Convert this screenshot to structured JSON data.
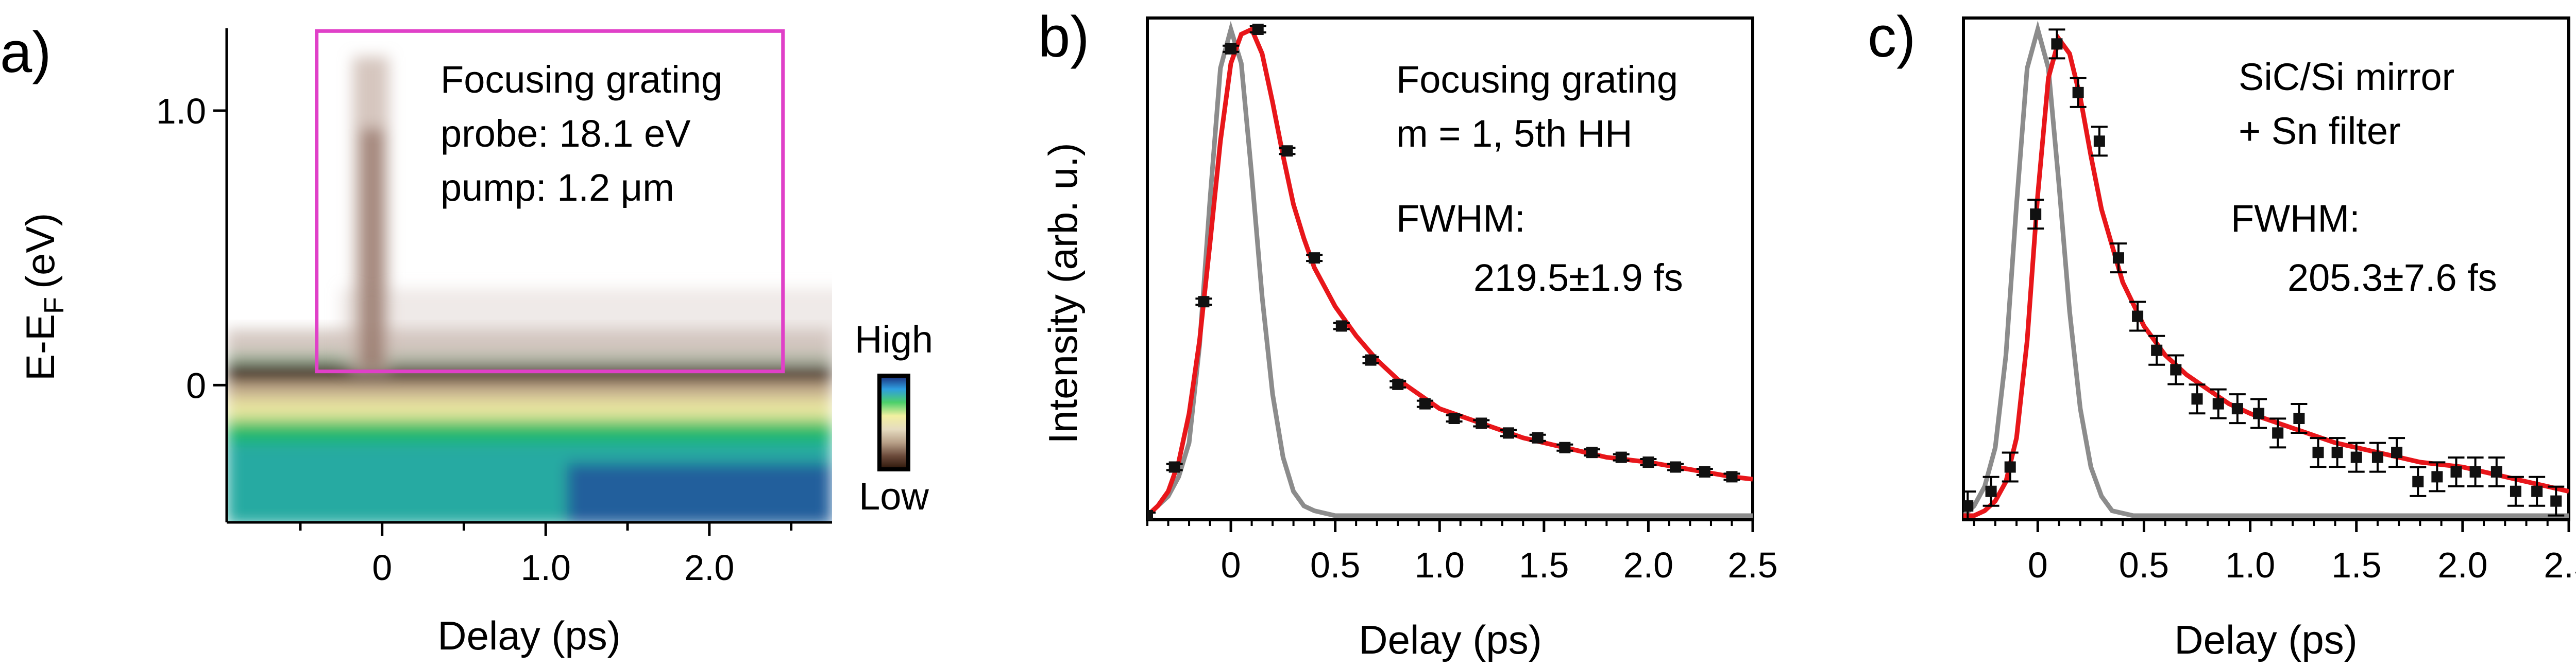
{
  "chart_data": [
    {
      "panel_label": "a)",
      "type": "heatmap",
      "xlabel": "Delay (ps)",
      "ylabel_main": "E-E",
      "ylabel_sub": "F",
      "ylabel_unit": "(eV)",
      "xlim": [
        -0.95,
        2.75
      ],
      "ylim": [
        -0.5,
        1.3
      ],
      "xticks": [
        {
          "value": 0,
          "label": "0"
        },
        {
          "value": 1.0,
          "label": "1.0"
        },
        {
          "value": 2.0,
          "label": "2.0"
        }
      ],
      "xticks_minor": [
        -0.5,
        0.5,
        1.5,
        2.5
      ],
      "yticks": [
        {
          "value": 0,
          "label": "0"
        },
        {
          "value": 1.0,
          "label": "1.0"
        }
      ],
      "annotation": [
        "Focusing grating",
        "probe: 18.1 eV",
        "pump: 1.2 μm"
      ],
      "box": {
        "x0": -0.4,
        "x1": 2.45,
        "y0": 0.05,
        "y1": 1.29,
        "color": "#e040c8"
      },
      "colorbar": {
        "high": "High",
        "low": "Low",
        "colors": [
          "#2a1408",
          "#6b4a3a",
          "#b8a088",
          "#e6dcc0",
          "#f2f0a0",
          "#4cd06a",
          "#2e9ee0",
          "#1a2a78"
        ]
      }
    },
    {
      "panel_label": "b)",
      "type": "scatter",
      "xlabel": "Delay (ps)",
      "ylabel": "Intensity (arb. u.)",
      "xlim": [
        -0.4,
        2.5
      ],
      "ylim": [
        0,
        1
      ],
      "xticks": [
        {
          "value": 0,
          "label": "0"
        },
        {
          "value": 0.5,
          "label": "0.5"
        },
        {
          "value": 1.0,
          "label": "1.0"
        },
        {
          "value": 1.5,
          "label": "1.5"
        },
        {
          "value": 2.0,
          "label": "2.0"
        },
        {
          "value": 2.5,
          "label": "2.5"
        }
      ],
      "annotation": [
        "Focusing grating",
        "m = 1, 5th HH"
      ],
      "fwhm_label": "FWHM:",
      "fwhm_value": "219.5±1.9 fs",
      "series": [
        {
          "name": "data",
          "x": [
            -0.4,
            -0.27,
            -0.13,
            0.0,
            0.13,
            0.27,
            0.4,
            0.53,
            0.67,
            0.8,
            0.93,
            1.07,
            1.2,
            1.33,
            1.47,
            1.6,
            1.73,
            1.87,
            2.0,
            2.13,
            2.27,
            2.4
          ],
          "y": [
            0.0,
            0.1,
            0.44,
            0.96,
            1.0,
            0.75,
            0.53,
            0.39,
            0.32,
            0.27,
            0.23,
            0.2,
            0.19,
            0.17,
            0.16,
            0.14,
            0.13,
            0.12,
            0.11,
            0.1,
            0.09,
            0.08
          ]
        },
        {
          "name": "fit",
          "color": "#e8161a",
          "x": [
            -0.4,
            -0.35,
            -0.3,
            -0.25,
            -0.2,
            -0.15,
            -0.1,
            -0.05,
            0.0,
            0.05,
            0.1,
            0.15,
            0.2,
            0.25,
            0.3,
            0.35,
            0.4,
            0.5,
            0.6,
            0.7,
            0.8,
            0.9,
            1.0,
            1.2,
            1.4,
            1.6,
            1.8,
            2.0,
            2.2,
            2.4,
            2.5
          ],
          "y": [
            0.0,
            0.02,
            0.05,
            0.11,
            0.21,
            0.36,
            0.56,
            0.77,
            0.93,
            0.99,
            1.0,
            0.95,
            0.85,
            0.74,
            0.64,
            0.57,
            0.51,
            0.43,
            0.37,
            0.32,
            0.28,
            0.25,
            0.22,
            0.19,
            0.16,
            0.14,
            0.12,
            0.11,
            0.095,
            0.08,
            0.075
          ]
        },
        {
          "name": "cross-correlation",
          "color": "#8c8c8c",
          "x": [
            -0.4,
            -0.3,
            -0.25,
            -0.2,
            -0.15,
            -0.1,
            -0.05,
            0.0,
            0.05,
            0.1,
            0.15,
            0.2,
            0.25,
            0.3,
            0.35,
            0.4,
            0.5,
            0.7,
            1.0,
            2.5
          ],
          "y": [
            0.0,
            0.04,
            0.08,
            0.15,
            0.35,
            0.65,
            0.92,
            1.0,
            0.93,
            0.7,
            0.45,
            0.25,
            0.12,
            0.05,
            0.02,
            0.01,
            0.0,
            0.0,
            0.0,
            0.0
          ]
        }
      ]
    },
    {
      "panel_label": "c)",
      "type": "scatter",
      "xlabel": "Delay (ps)",
      "ylabel": "",
      "xlim": [
        -0.35,
        2.5
      ],
      "ylim": [
        0,
        1
      ],
      "xticks": [
        {
          "value": 0,
          "label": "0"
        },
        {
          "value": 0.5,
          "label": "0.5"
        },
        {
          "value": 1.0,
          "label": "1.0"
        },
        {
          "value": 1.5,
          "label": "1.5"
        },
        {
          "value": 2.0,
          "label": "2.0"
        },
        {
          "value": 2.5,
          "label": "2.5"
        }
      ],
      "annotation": [
        "SiC/Si mirror",
        "+ Sn filter"
      ],
      "fwhm_label": "FWHM:",
      "fwhm_value": "205.3±7.6 fs",
      "series": [
        {
          "name": "data",
          "x": [
            -0.33,
            -0.22,
            -0.13,
            -0.01,
            0.09,
            0.19,
            0.29,
            0.38,
            0.47,
            0.56,
            0.65,
            0.75,
            0.85,
            0.94,
            1.04,
            1.13,
            1.23,
            1.32,
            1.41,
            1.5,
            1.6,
            1.69,
            1.79,
            1.88,
            1.97,
            2.06,
            2.16,
            2.25,
            2.35,
            2.44
          ],
          "y": [
            0.02,
            0.05,
            0.1,
            0.62,
            0.97,
            0.87,
            0.77,
            0.53,
            0.41,
            0.34,
            0.3,
            0.24,
            0.23,
            0.22,
            0.21,
            0.17,
            0.2,
            0.13,
            0.13,
            0.12,
            0.12,
            0.13,
            0.07,
            0.08,
            0.09,
            0.09,
            0.09,
            0.05,
            0.05,
            0.03
          ]
        },
        {
          "name": "fit",
          "color": "#e8161a",
          "x": [
            -0.35,
            -0.3,
            -0.25,
            -0.2,
            -0.15,
            -0.1,
            -0.05,
            0.0,
            0.05,
            0.1,
            0.15,
            0.2,
            0.25,
            0.3,
            0.4,
            0.5,
            0.6,
            0.7,
            0.8,
            0.9,
            1.0,
            1.2,
            1.4,
            1.6,
            1.8,
            2.0,
            2.2,
            2.4,
            2.5
          ],
          "y": [
            0.0,
            0.0,
            0.01,
            0.03,
            0.07,
            0.16,
            0.36,
            0.66,
            0.9,
            0.98,
            0.95,
            0.86,
            0.74,
            0.63,
            0.48,
            0.39,
            0.33,
            0.29,
            0.26,
            0.23,
            0.21,
            0.18,
            0.15,
            0.13,
            0.11,
            0.1,
            0.08,
            0.06,
            0.05
          ]
        },
        {
          "name": "cross-correlation",
          "color": "#8c8c8c",
          "x": [
            -0.35,
            -0.3,
            -0.25,
            -0.2,
            -0.15,
            -0.1,
            -0.05,
            0.0,
            0.05,
            0.1,
            0.15,
            0.2,
            0.25,
            0.3,
            0.35,
            0.45,
            0.7,
            1.0,
            2.5
          ],
          "y": [
            0.0,
            0.02,
            0.06,
            0.14,
            0.33,
            0.64,
            0.92,
            1.0,
            0.92,
            0.68,
            0.42,
            0.22,
            0.1,
            0.04,
            0.01,
            0.0,
            0.0,
            0.0,
            0.0
          ]
        }
      ]
    }
  ]
}
